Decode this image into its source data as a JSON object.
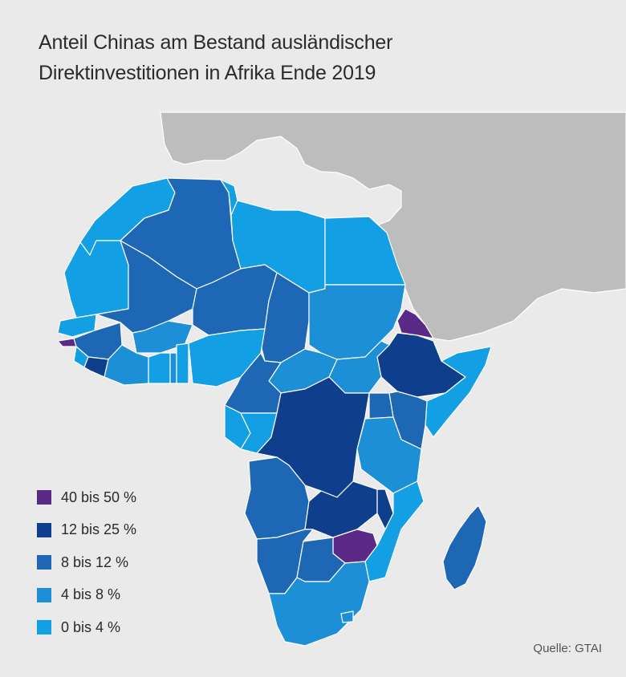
{
  "title": {
    "line1": "Anteil Chinas am Bestand ausländischer",
    "line2": "Direktinvestitionen in Afrika Ende 2019"
  },
  "colors": {
    "background": "#eaeaea",
    "other_land": "#bdbdbd",
    "border": "#ffffff",
    "c40_50": "#5b2a86",
    "c12_25": "#0f3f8c",
    "c8_12": "#1e67b4",
    "c4_8": "#1d8fd6",
    "c0_4": "#139fe3"
  },
  "legend": [
    {
      "label": "40 bis 50 %",
      "color": "#5b2a86"
    },
    {
      "label": "12 bis 25 %",
      "color": "#0f3f8c"
    },
    {
      "label": "8 bis 12 %",
      "color": "#1e67b4"
    },
    {
      "label": "4 bis 8 %",
      "color": "#1d8fd6"
    },
    {
      "label": "0 bis 4 %",
      "color": "#139fe3"
    }
  ],
  "source": "Quelle: GTAI"
}
